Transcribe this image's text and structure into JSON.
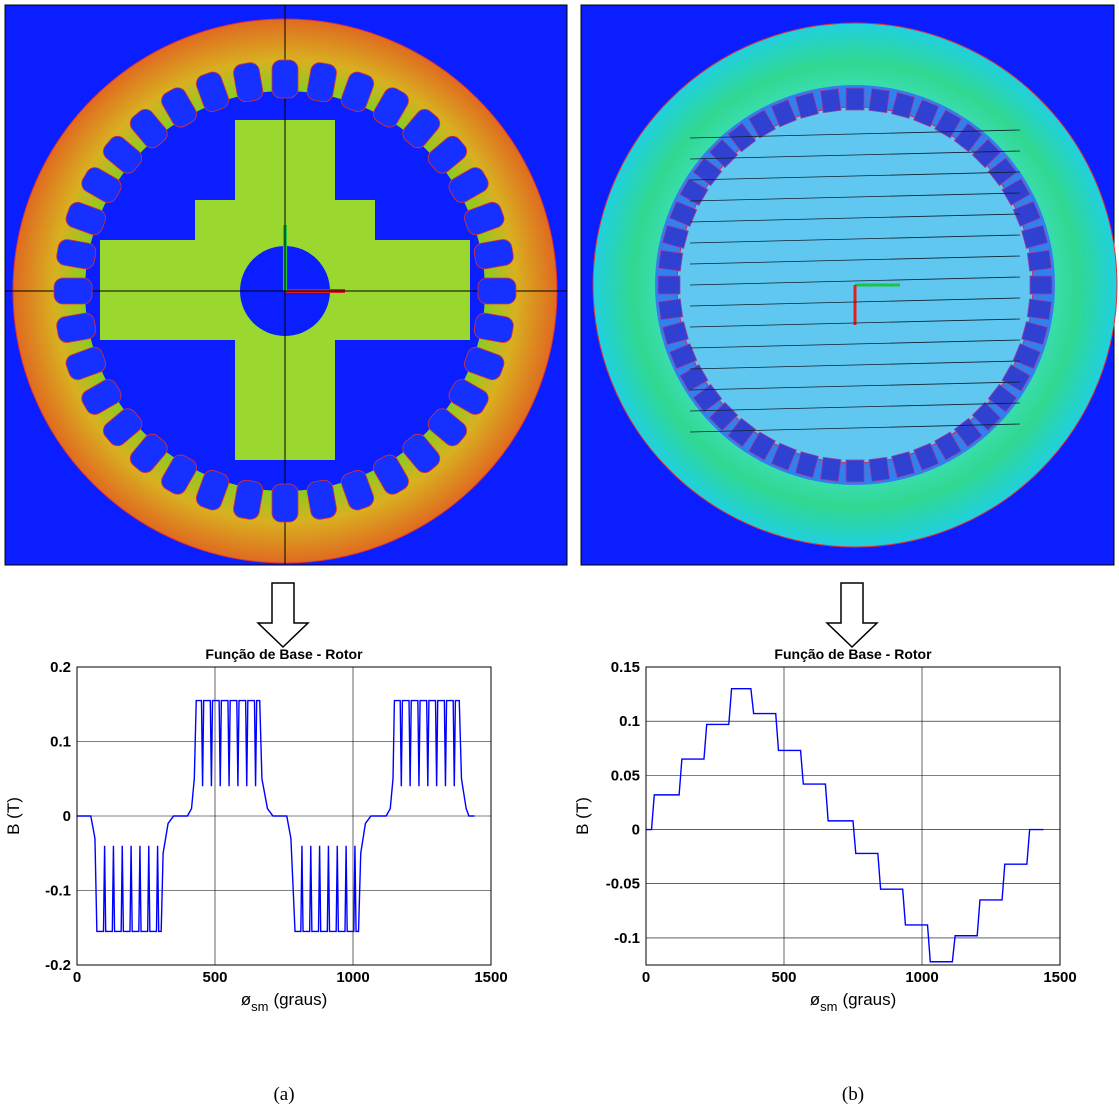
{
  "captions": [
    "(a)",
    "(b)"
  ],
  "chart_data": [
    {
      "type": "line",
      "title": "Função de Base - Rotor",
      "ylabel": "B (T)",
      "xlabel": {
        "symbol": "ø",
        "subscript": "sm",
        "unit": "(graus)"
      },
      "color": "#0000ff",
      "grid": true,
      "xlim": [
        0,
        1500
      ],
      "xticks": [
        0,
        500,
        1000,
        1500
      ],
      "ylim": [
        -0.2,
        0.2
      ],
      "yticks": [
        -0.2,
        -0.1,
        0,
        0.1,
        0.2
      ],
      "x": [
        0,
        50,
        65,
        72,
        96,
        100,
        104,
        128,
        132,
        136,
        160,
        164,
        168,
        192,
        196,
        200,
        224,
        228,
        232,
        256,
        260,
        264,
        288,
        292,
        296,
        305,
        312,
        330,
        350,
        400,
        415,
        425,
        432,
        451,
        455,
        459,
        483,
        487,
        491,
        515,
        519,
        523,
        547,
        551,
        555,
        579,
        583,
        587,
        611,
        615,
        619,
        643,
        647,
        651,
        662,
        670,
        690,
        710,
        760,
        775,
        790,
        811,
        815,
        819,
        843,
        847,
        851,
        875,
        879,
        883,
        907,
        911,
        915,
        939,
        943,
        947,
        971,
        975,
        979,
        1003,
        1007,
        1011,
        1020,
        1028,
        1045,
        1065,
        1120,
        1135,
        1145,
        1150,
        1171,
        1175,
        1179,
        1203,
        1207,
        1211,
        1235,
        1239,
        1243,
        1267,
        1271,
        1275,
        1299,
        1303,
        1307,
        1331,
        1335,
        1339,
        1363,
        1367,
        1371,
        1385,
        1393,
        1410,
        1420,
        1440
      ],
      "values": [
        0,
        0,
        -0.03,
        -0.155,
        -0.155,
        -0.04,
        -0.155,
        -0.155,
        -0.04,
        -0.155,
        -0.155,
        -0.04,
        -0.155,
        -0.155,
        -0.04,
        -0.155,
        -0.155,
        -0.04,
        -0.155,
        -0.155,
        -0.04,
        -0.155,
        -0.155,
        -0.04,
        -0.155,
        -0.155,
        -0.05,
        -0.01,
        0,
        0,
        0.01,
        0.05,
        0.155,
        0.155,
        0.04,
        0.155,
        0.155,
        0.04,
        0.155,
        0.155,
        0.04,
        0.155,
        0.155,
        0.04,
        0.155,
        0.155,
        0.04,
        0.155,
        0.155,
        0.04,
        0.155,
        0.155,
        0.04,
        0.155,
        0.155,
        0.05,
        0.01,
        0,
        0,
        -0.03,
        -0.155,
        -0.155,
        -0.04,
        -0.155,
        -0.155,
        -0.04,
        -0.155,
        -0.155,
        -0.04,
        -0.155,
        -0.155,
        -0.04,
        -0.155,
        -0.155,
        -0.04,
        -0.155,
        -0.155,
        -0.04,
        -0.155,
        -0.155,
        -0.04,
        -0.155,
        -0.155,
        -0.05,
        -0.01,
        0,
        0,
        0.01,
        0.05,
        0.155,
        0.155,
        0.04,
        0.155,
        0.155,
        0.04,
        0.155,
        0.155,
        0.04,
        0.155,
        0.155,
        0.04,
        0.155,
        0.155,
        0.04,
        0.155,
        0.155,
        0.04,
        0.155,
        0.155,
        0.04,
        0.155,
        0.155,
        0.05,
        0.01,
        0,
        0
      ]
    },
    {
      "type": "line",
      "title": "Função de Base - Rotor",
      "ylabel": "B (T)",
      "xlabel": {
        "symbol": "ø",
        "subscript": "sm",
        "unit": "(graus)"
      },
      "color": "#0000ff",
      "grid": true,
      "xlim": [
        0,
        1500
      ],
      "xticks": [
        0,
        500,
        1000,
        1500
      ],
      "ylim": [
        -0.125,
        0.15
      ],
      "yticks": [
        -0.1,
        -0.05,
        0,
        0.05,
        0.1,
        0.15
      ],
      "x": [
        0,
        20,
        30,
        120,
        130,
        210,
        220,
        300,
        310,
        380,
        390,
        470,
        480,
        560,
        570,
        650,
        660,
        750,
        760,
        840,
        850,
        930,
        940,
        1020,
        1030,
        1110,
        1120,
        1200,
        1210,
        1290,
        1300,
        1380,
        1390,
        1440
      ],
      "values": [
        0,
        0,
        0.032,
        0.032,
        0.065,
        0.065,
        0.097,
        0.097,
        0.13,
        0.13,
        0.107,
        0.107,
        0.073,
        0.073,
        0.042,
        0.042,
        0.008,
        0.008,
        -0.022,
        -0.022,
        -0.055,
        -0.055,
        -0.088,
        -0.088,
        -0.122,
        -0.122,
        -0.098,
        -0.098,
        -0.065,
        -0.065,
        -0.032,
        -0.032,
        0,
        0
      ]
    }
  ]
}
